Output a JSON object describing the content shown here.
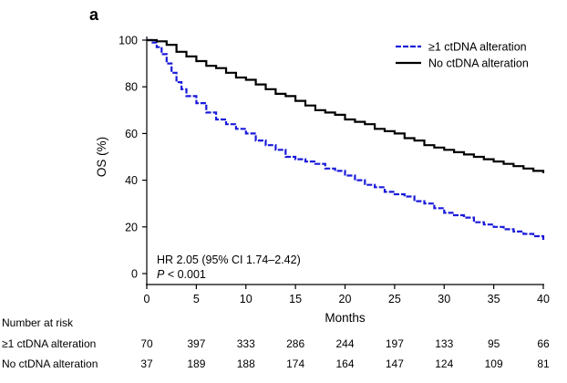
{
  "panel_label": "a",
  "chart_data": {
    "type": "line",
    "title": "",
    "xlabel": "Months",
    "ylabel": "OS (%)",
    "xlim": [
      0,
      40
    ],
    "ylim": [
      0,
      100
    ],
    "x_ticks": [
      0,
      5,
      10,
      15,
      20,
      25,
      30,
      35,
      40
    ],
    "y_ticks": [
      0,
      20,
      40,
      60,
      80,
      100
    ],
    "legend": {
      "position": "top-right"
    },
    "series": [
      {
        "name": "≥1 ctDNA alteration",
        "color": "#1a1adb",
        "dash": "dashed",
        "points": [
          [
            0,
            100
          ],
          [
            0.5,
            99
          ],
          [
            1,
            97
          ],
          [
            1.5,
            94
          ],
          [
            2,
            90
          ],
          [
            2.5,
            86
          ],
          [
            3,
            82
          ],
          [
            3.5,
            79
          ],
          [
            4,
            76
          ],
          [
            5,
            73
          ],
          [
            6,
            69
          ],
          [
            7,
            66
          ],
          [
            8,
            64
          ],
          [
            9,
            62
          ],
          [
            10,
            60
          ],
          [
            11,
            57
          ],
          [
            12,
            55
          ],
          [
            13,
            53
          ],
          [
            14,
            50
          ],
          [
            15,
            49
          ],
          [
            16,
            48
          ],
          [
            17,
            47
          ],
          [
            18,
            45
          ],
          [
            19,
            44
          ],
          [
            20,
            42
          ],
          [
            21,
            40
          ],
          [
            22,
            38
          ],
          [
            23,
            37
          ],
          [
            24,
            35
          ],
          [
            25,
            34
          ],
          [
            26,
            33
          ],
          [
            27,
            31
          ],
          [
            28,
            30
          ],
          [
            29,
            28
          ],
          [
            30,
            26
          ],
          [
            31,
            25
          ],
          [
            32,
            24
          ],
          [
            33,
            22
          ],
          [
            34,
            21
          ],
          [
            35,
            20
          ],
          [
            36,
            19
          ],
          [
            37,
            18
          ],
          [
            38,
            17
          ],
          [
            39,
            16
          ],
          [
            40,
            14
          ]
        ]
      },
      {
        "name": "No ctDNA alteration",
        "color": "#000000",
        "dash": "solid",
        "points": [
          [
            0,
            100
          ],
          [
            1,
            99.5
          ],
          [
            2,
            98
          ],
          [
            3,
            95
          ],
          [
            4,
            93
          ],
          [
            5,
            91
          ],
          [
            6,
            89
          ],
          [
            7,
            88
          ],
          [
            8,
            86
          ],
          [
            9,
            84
          ],
          [
            10,
            83
          ],
          [
            11,
            81
          ],
          [
            12,
            79
          ],
          [
            13,
            77
          ],
          [
            14,
            76
          ],
          [
            15,
            74
          ],
          [
            16,
            72
          ],
          [
            17,
            70
          ],
          [
            18,
            69
          ],
          [
            19,
            68
          ],
          [
            20,
            66
          ],
          [
            21,
            65
          ],
          [
            22,
            64
          ],
          [
            23,
            62
          ],
          [
            24,
            61
          ],
          [
            25,
            60
          ],
          [
            26,
            58
          ],
          [
            27,
            57
          ],
          [
            28,
            55
          ],
          [
            29,
            54
          ],
          [
            30,
            53
          ],
          [
            31,
            52
          ],
          [
            32,
            51
          ],
          [
            33,
            50
          ],
          [
            34,
            49
          ],
          [
            35,
            48
          ],
          [
            36,
            47
          ],
          [
            37,
            46
          ],
          [
            38,
            45
          ],
          [
            39,
            44
          ],
          [
            40,
            43
          ]
        ]
      }
    ],
    "annotations": [
      "HR 2.05 (95% CI 1.74–2.42)",
      "P",
      " < 0.001"
    ],
    "risk_table": {
      "title": "Number at risk",
      "rows": [
        {
          "label": "≥1 ctDNA alteration",
          "values": [
            70,
            397,
            333,
            286,
            244,
            197,
            133,
            95,
            66
          ]
        },
        {
          "label": "No ctDNA alteration",
          "values": [
            37,
            189,
            188,
            174,
            164,
            147,
            124,
            109,
            81
          ]
        }
      ]
    }
  }
}
